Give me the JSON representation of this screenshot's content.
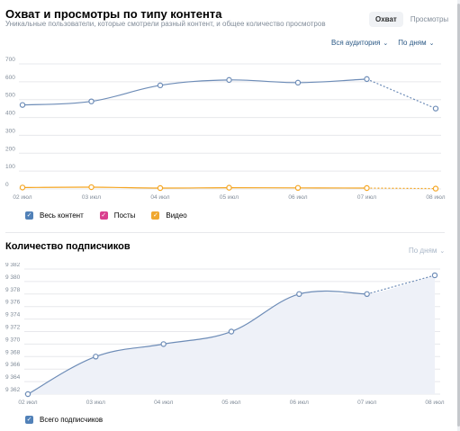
{
  "section1": {
    "title": "Охват и просмотры по типу контента",
    "subtitle": "Уникальные пользователи, которые смотрели разный контент, и общее количество просмотров",
    "tabs": [
      {
        "label": "Охват",
        "active": true
      },
      {
        "label": "Просмотры",
        "active": false
      }
    ],
    "filter_audience": "Вся аудитория",
    "filter_period": "По дням",
    "legend": [
      {
        "label": "Весь контент",
        "color": "#5181b8"
      },
      {
        "label": "Посты",
        "color": "#e64646"
      },
      {
        "label": "Видео",
        "color": "#f0a830"
      }
    ]
  },
  "section2": {
    "title": "Количество подписчиков",
    "filter_period": "По дням",
    "legend": [
      {
        "label": "Всего подписчиков",
        "color": "#5181b8"
      }
    ]
  },
  "chart_data": [
    {
      "type": "line",
      "x": [
        "02 июл",
        "03 июл",
        "04 июл",
        "05 июл",
        "06 июл",
        "07 июл",
        "08 июл"
      ],
      "ylim": [
        0,
        700
      ],
      "yticks": [
        "700",
        "600",
        "500",
        "400",
        "300",
        "200",
        "100",
        "0"
      ],
      "grid": true,
      "series": [
        {
          "name": "Весь контент",
          "values": [
            470,
            490,
            580,
            610,
            595,
            615,
            450
          ],
          "color": "#6d8cb7"
        },
        {
          "name": "Видео",
          "values": [
            8,
            10,
            5,
            7,
            6,
            5,
            2
          ],
          "color": "#f5a623"
        }
      ]
    },
    {
      "type": "area",
      "x": [
        "02 июл",
        "03 июл",
        "04 июл",
        "05 июл",
        "06 июл",
        "07 июл",
        "08 июл"
      ],
      "ylim": [
        9362,
        9382
      ],
      "yticks": [
        "9 382",
        "9 380",
        "9 378",
        "9 376",
        "9 374",
        "9 372",
        "9 370",
        "9 368",
        "9 366",
        "9 364",
        "9 362"
      ],
      "grid": true,
      "series": [
        {
          "name": "Всего подписчиков",
          "values": [
            9362,
            9368,
            9370,
            9372,
            9378,
            9378,
            9381
          ],
          "color": "#6d8cb7"
        }
      ]
    }
  ]
}
